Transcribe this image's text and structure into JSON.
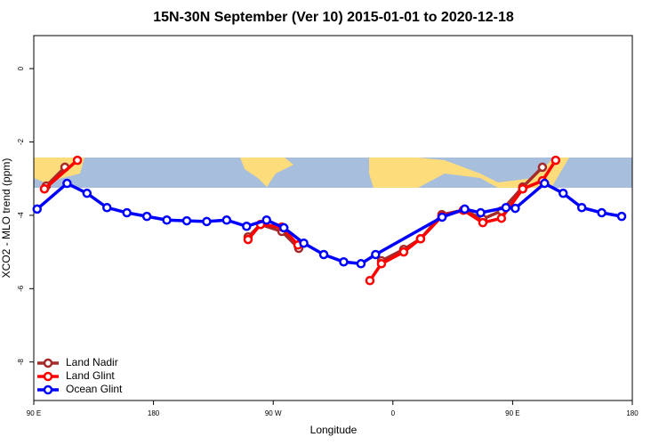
{
  "chart_data": {
    "type": "line",
    "title": "15N-30N September (Ver 10)   2015-01-01 to 2020-12-18",
    "x_label": "Longitude",
    "y_label": "XCO2 - MLO trend (ppm)",
    "xlim": [
      90,
      540
    ],
    "xticks": [
      {
        "value": 90,
        "label": "90 E"
      },
      {
        "value": 180,
        "label": "180"
      },
      {
        "value": 270,
        "label": "90 W"
      },
      {
        "value": 360,
        "label": "0"
      },
      {
        "value": 450,
        "label": "90 E"
      },
      {
        "value": 540,
        "label": "180"
      }
    ],
    "ylim": [
      -9.05,
      0.9
    ],
    "yticks": [
      0,
      -2,
      -4,
      -6,
      -8
    ],
    "legend": "bottom-left",
    "series": [
      {
        "name": "Land Nadir",
        "color": "#a52a2a",
        "x": [
          99.4,
          113.4,
          null,
          251.1,
          260.5,
          276.5,
          289.2,
          null,
          351.4,
          368.1,
          380.8,
          396.8,
          413,
          427.6,
          441.6,
          457.6,
          472.4
        ],
        "values": [
          -3.2,
          -2.69,
          null,
          -4.59,
          -4.25,
          -4.44,
          -4.9,
          null,
          -5.24,
          -4.93,
          -4.64,
          -3.98,
          -3.86,
          -4.1,
          -3.88,
          -3.23,
          -2.69
        ]
      },
      {
        "name": "Land Glint",
        "color": "#ff0000",
        "x": [
          98,
          122.8,
          null,
          251.1,
          260.5,
          276.5,
          288.6,
          null,
          342.7,
          351.4,
          368.1,
          380.8,
          396.8,
          413,
          427.6,
          441.6,
          457.6,
          472.4,
          482.4
        ],
        "values": [
          -3.28,
          -2.5,
          null,
          -4.66,
          -4.25,
          -4.32,
          -4.81,
          null,
          -5.78,
          -5.32,
          -5.0,
          -4.64,
          -4.03,
          -3.86,
          -4.2,
          -4.08,
          -3.28,
          -3.06,
          -2.5
        ]
      },
      {
        "name": "Ocean Glint",
        "color": "#0000ff",
        "x": [
          92.5,
          115,
          130,
          145,
          160,
          175,
          190,
          205,
          220,
          235,
          250,
          265,
          278,
          293,
          308,
          323,
          336,
          347,
          397,
          414,
          426,
          445,
          452,
          474,
          488,
          502,
          517,
          532
        ],
        "values": [
          -3.83,
          -3.13,
          -3.4,
          -3.79,
          -3.93,
          -4.03,
          -4.13,
          -4.15,
          -4.17,
          -4.13,
          -4.3,
          -4.13,
          -4.34,
          -4.76,
          -5.07,
          -5.27,
          -5.32,
          -5.07,
          -4.05,
          -3.83,
          -3.93,
          -3.79,
          -3.81,
          -3.13,
          -3.4,
          -3.79,
          -3.93,
          -4.03
        ]
      }
    ]
  }
}
